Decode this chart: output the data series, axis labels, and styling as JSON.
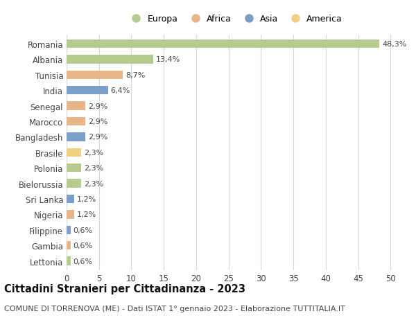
{
  "countries": [
    "Romania",
    "Albania",
    "Tunisia",
    "India",
    "Senegal",
    "Marocco",
    "Bangladesh",
    "Brasile",
    "Polonia",
    "Bielorussia",
    "Sri Lanka",
    "Nigeria",
    "Filippine",
    "Gambia",
    "Lettonia"
  ],
  "values": [
    48.3,
    13.4,
    8.7,
    6.4,
    2.9,
    2.9,
    2.9,
    2.3,
    2.3,
    2.3,
    1.2,
    1.2,
    0.6,
    0.6,
    0.6
  ],
  "labels": [
    "48,3%",
    "13,4%",
    "8,7%",
    "6,4%",
    "2,9%",
    "2,9%",
    "2,9%",
    "2,3%",
    "2,3%",
    "2,3%",
    "1,2%",
    "1,2%",
    "0,6%",
    "0,6%",
    "0,6%"
  ],
  "continents": [
    "Europa",
    "Europa",
    "Africa",
    "Asia",
    "Africa",
    "Africa",
    "Asia",
    "America",
    "Europa",
    "Europa",
    "Asia",
    "Africa",
    "Asia",
    "Africa",
    "Europa"
  ],
  "continent_colors": {
    "Europa": "#b5cc8e",
    "Africa": "#e8b48a",
    "Asia": "#7b9fc7",
    "America": "#f0d080"
  },
  "legend_order": [
    "Europa",
    "Africa",
    "Asia",
    "America"
  ],
  "title": "Cittadini Stranieri per Cittadinanza - 2023",
  "subtitle": "COMUNE DI TORRENOVA (ME) - Dati ISTAT 1° gennaio 2023 - Elaborazione TUTTITALIA.IT",
  "xlim": [
    0,
    52
  ],
  "xticks": [
    0,
    5,
    10,
    15,
    20,
    25,
    30,
    35,
    40,
    45,
    50
  ],
  "background_color": "#ffffff",
  "grid_color": "#d8d8d8",
  "bar_height": 0.55,
  "title_fontsize": 10.5,
  "subtitle_fontsize": 8,
  "tick_fontsize": 8.5,
  "label_fontsize": 8,
  "legend_fontsize": 9
}
